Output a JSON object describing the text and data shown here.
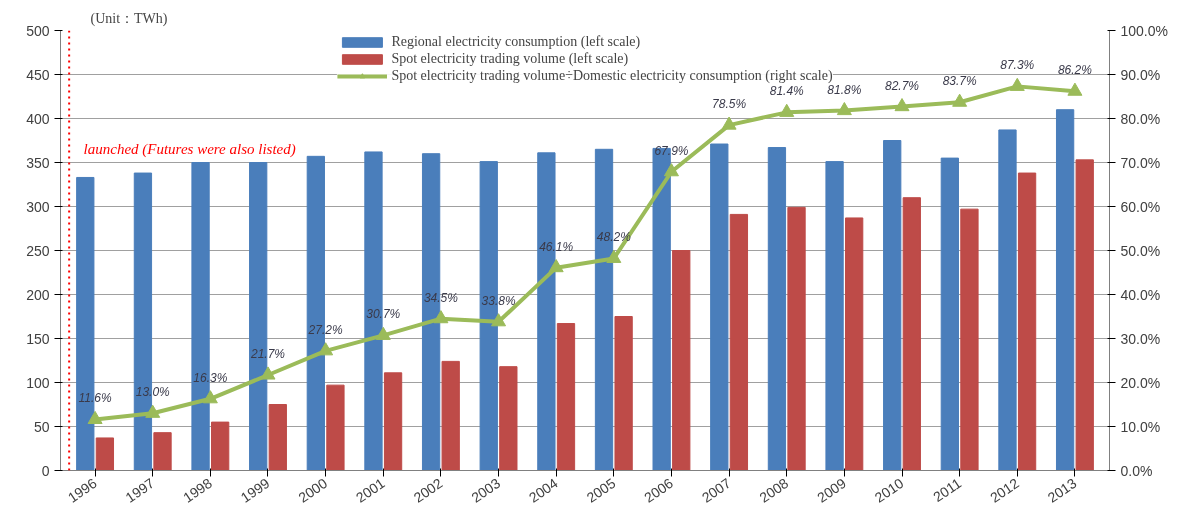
{
  "chart_data": {
    "type": "bar",
    "categories": [
      "1996",
      "1997",
      "1998",
      "1999",
      "2000",
      "2001",
      "2002",
      "2003",
      "2004",
      "2005",
      "2006",
      "2007",
      "2008",
      "2009",
      "2010",
      "2011",
      "2012",
      "2013"
    ],
    "series": [
      {
        "name": "Regional electricity consumption (left scale)",
        "color": "#4a7ebb",
        "values": [
          333,
          338,
          350,
          350,
          357,
          362,
          360,
          351,
          361,
          365,
          366,
          371,
          367,
          351,
          375,
          355,
          387,
          410
        ]
      },
      {
        "name": "Spot electricity trading volume (left scale)",
        "color": "#be4b48",
        "values": [
          37,
          43,
          55,
          75,
          97,
          111,
          124,
          118,
          167,
          175,
          250,
          291,
          299,
          287,
          310,
          297,
          338,
          353
        ]
      },
      {
        "name": "Spot electricity trading volume÷Domestic electricity consumption (right scale)",
        "type": "line",
        "axis": "y2",
        "color": "#9bbb59",
        "marker": "triangle",
        "values": [
          11.6,
          13.0,
          16.3,
          21.7,
          27.2,
          30.7,
          34.5,
          33.8,
          46.1,
          48.2,
          67.9,
          78.5,
          81.4,
          81.8,
          82.7,
          83.7,
          87.3,
          86.2
        ],
        "value_labels": [
          "11.6%",
          "13.0%",
          "16.3%",
          "21.7%",
          "27.2%",
          "30.7%",
          "34.5%",
          "33.8%",
          "46.1%",
          "48.2%",
          "67.9%",
          "78.5%",
          "81.4%",
          "81.8%",
          "82.7%",
          "83.7%",
          "87.3%",
          "86.2%"
        ]
      }
    ],
    "ylim": [
      0,
      500
    ],
    "yticks": [
      0,
      50,
      100,
      150,
      200,
      250,
      300,
      350,
      400,
      450,
      500
    ],
    "y2lim": [
      0,
      100
    ],
    "y2ticks": [
      {
        "value": 0,
        "label": "0.0%"
      },
      {
        "value": 10,
        "label": "10.0%"
      },
      {
        "value": 20,
        "label": "20.0%"
      },
      {
        "value": 30,
        "label": "30.0%"
      },
      {
        "value": 40,
        "label": "40.0%"
      },
      {
        "value": 50,
        "label": "50.0%"
      },
      {
        "value": 60,
        "label": "60.0%"
      },
      {
        "value": 70,
        "label": "70.0%"
      },
      {
        "value": 80,
        "label": "80.0%"
      },
      {
        "value": 90,
        "label": "90.0%"
      },
      {
        "value": 100,
        "label": "100.0%"
      }
    ],
    "annotations": [
      "(Unit：TWh)"
    ],
    "ref_lines": [
      {
        "axis": "x",
        "value": "1996",
        "label": "launched (Futures were also listed)",
        "color": "#ff0000",
        "line_style": "dotted"
      }
    ],
    "grid": "y",
    "legend": "top"
  }
}
